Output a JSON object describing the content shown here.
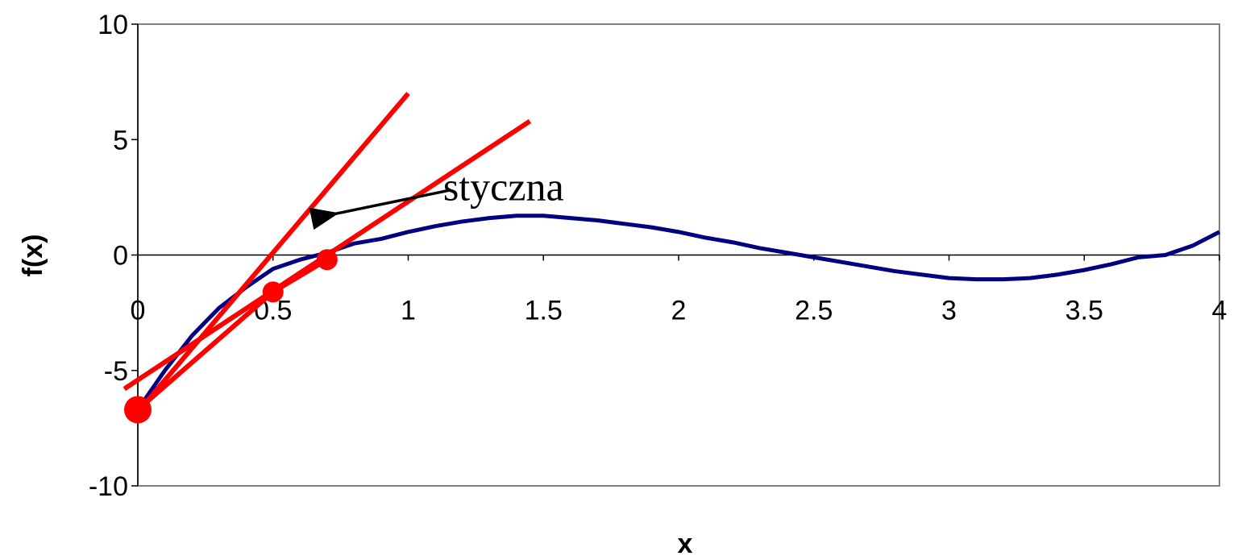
{
  "chart_data": {
    "type": "line",
    "xlabel": "x",
    "ylabel": "f(x)",
    "xlim": [
      0,
      4
    ],
    "ylim": [
      -10,
      10
    ],
    "x_ticks": [
      "0",
      "0.5",
      "1",
      "1.5",
      "2",
      "2.5",
      "3",
      "3.5",
      "4"
    ],
    "y_ticks": [
      "10",
      "5",
      "0",
      "-5",
      "-10"
    ],
    "x_tick_values": [
      0,
      0.5,
      1,
      1.5,
      2,
      2.5,
      3,
      3.5,
      4
    ],
    "y_tick_values": [
      10,
      5,
      0,
      -5,
      -10
    ],
    "grid": false,
    "series": [
      {
        "color": "#000080",
        "x": [
          0.0,
          0.1,
          0.2,
          0.3,
          0.4,
          0.5,
          0.6,
          0.7,
          0.8,
          0.9,
          1.0,
          1.1,
          1.2,
          1.3,
          1.4,
          1.5,
          1.6,
          1.7,
          1.8,
          1.9,
          2.0,
          2.1,
          2.2,
          2.3,
          2.4,
          2.5,
          2.6,
          2.7,
          2.8,
          2.9,
          3.0,
          3.1,
          3.2,
          3.3,
          3.4,
          3.5,
          3.6,
          3.7,
          3.8,
          3.9,
          4.0
        ],
        "y": [
          -6.7,
          -5.0,
          -3.5,
          -2.3,
          -1.4,
          -0.6,
          -0.2,
          0.1,
          0.5,
          0.7,
          1.0,
          1.25,
          1.45,
          1.6,
          1.7,
          1.7,
          1.6,
          1.5,
          1.35,
          1.2,
          1.0,
          0.75,
          0.55,
          0.3,
          0.1,
          -0.1,
          -0.3,
          -0.5,
          -0.7,
          -0.85,
          -1.0,
          -1.05,
          -1.05,
          -1.0,
          -0.85,
          -0.65,
          -0.4,
          -0.1,
          0.0,
          0.4,
          1.0
        ]
      }
    ],
    "tangent_lines": [
      {
        "color": "#ff0000",
        "x": [
          0.0,
          1.0
        ],
        "y": [
          -6.8,
          7.0
        ]
      },
      {
        "color": "#ff0000",
        "x": [
          -0.05,
          1.45
        ],
        "y": [
          -5.8,
          5.8
        ]
      }
    ],
    "points": [
      {
        "color": "#ff0000",
        "x": 0.0,
        "y": -6.7,
        "size": "large"
      },
      {
        "color": "#ff0000",
        "x": 0.5,
        "y": -1.6,
        "size": "medium"
      },
      {
        "color": "#ff0000",
        "x": 0.7,
        "y": -0.2,
        "size": "medium"
      }
    ],
    "annotation": {
      "text": "styczna",
      "arrow_from": [
        1.15,
        2.8
      ],
      "arrow_to": [
        0.7,
        1.7
      ]
    }
  }
}
